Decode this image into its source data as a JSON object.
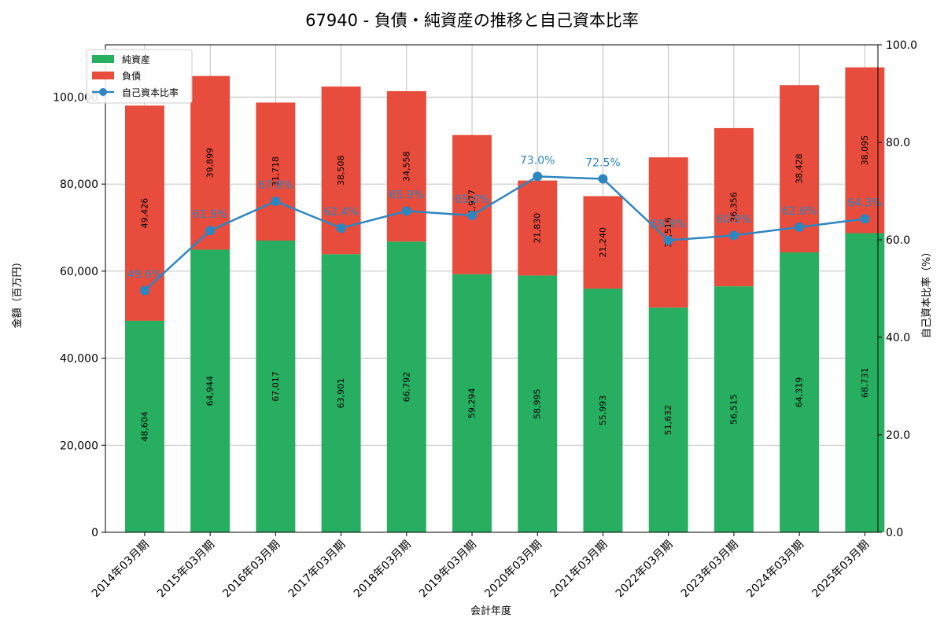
{
  "chart_data": {
    "type": "bar",
    "stacked": true,
    "title": "67940 - 負債・純資産の推移と自己資本比率",
    "xlabel": "会計年度",
    "ylabel": "金額（百万円）",
    "ylabel_right": "自己資本比率（%）",
    "categories": [
      "2014年03月期",
      "2015年03月期",
      "2016年03月期",
      "2017年03月期",
      "2018年03月期",
      "2019年03月期",
      "2020年03月期",
      "2021年03月期",
      "2022年03月期",
      "2023年03月期",
      "2024年03月期",
      "2025年03月期"
    ],
    "series": [
      {
        "name": "純資産",
        "color": "#27ae60",
        "values": [
          48604,
          64944,
          67017,
          63901,
          66792,
          59294,
          58995,
          55993,
          51632,
          56515,
          64319,
          68731
        ],
        "value_labels": [
          "48,604",
          "64,944",
          "67,017",
          "63,901",
          "66,792",
          "59,294",
          "58,995",
          "55,993",
          "51,632",
          "56,515",
          "64,319",
          "68,731"
        ]
      },
      {
        "name": "負債",
        "color": "#e74c3c",
        "values": [
          49426,
          39899,
          31718,
          38508,
          34558,
          31977,
          21830,
          21240,
          34516,
          36356,
          38428,
          38095
        ],
        "value_labels": [
          "49,426",
          "39,899",
          "31,718",
          "38,508",
          "34,558",
          "31,977",
          "21,830",
          "21,240",
          "34,516",
          "36,356",
          "38,428",
          "38,095"
        ]
      },
      {
        "name": "自己資本比率",
        "type": "line",
        "axis": "right",
        "color": "#2e86c1",
        "values": [
          49.6,
          61.9,
          67.9,
          62.4,
          65.9,
          65.0,
          73.0,
          72.5,
          59.9,
          60.9,
          62.6,
          64.3
        ],
        "value_labels": [
          "49.6%",
          "61.9%",
          "67.9%",
          "62.4%",
          "65.9%",
          "65.0%",
          "73.0%",
          "72.5%",
          "59.9%",
          "60.9%",
          "62.6%",
          "64.3%"
        ]
      }
    ],
    "ylim": [
      0,
      112000
    ],
    "yticks": [
      0,
      20000,
      40000,
      60000,
      80000,
      100000
    ],
    "ytick_labels": [
      "0",
      "20,000",
      "40,000",
      "60,000",
      "80,000",
      "100,000"
    ],
    "ylim_right": [
      0,
      100
    ],
    "yticks_right": [
      0,
      20,
      40,
      60,
      80,
      100
    ],
    "ytick_labels_right": [
      "0.0",
      "20.0",
      "40.0",
      "60.0",
      "80.0",
      "100.0"
    ],
    "grid": true,
    "legend_position": "top-left"
  }
}
